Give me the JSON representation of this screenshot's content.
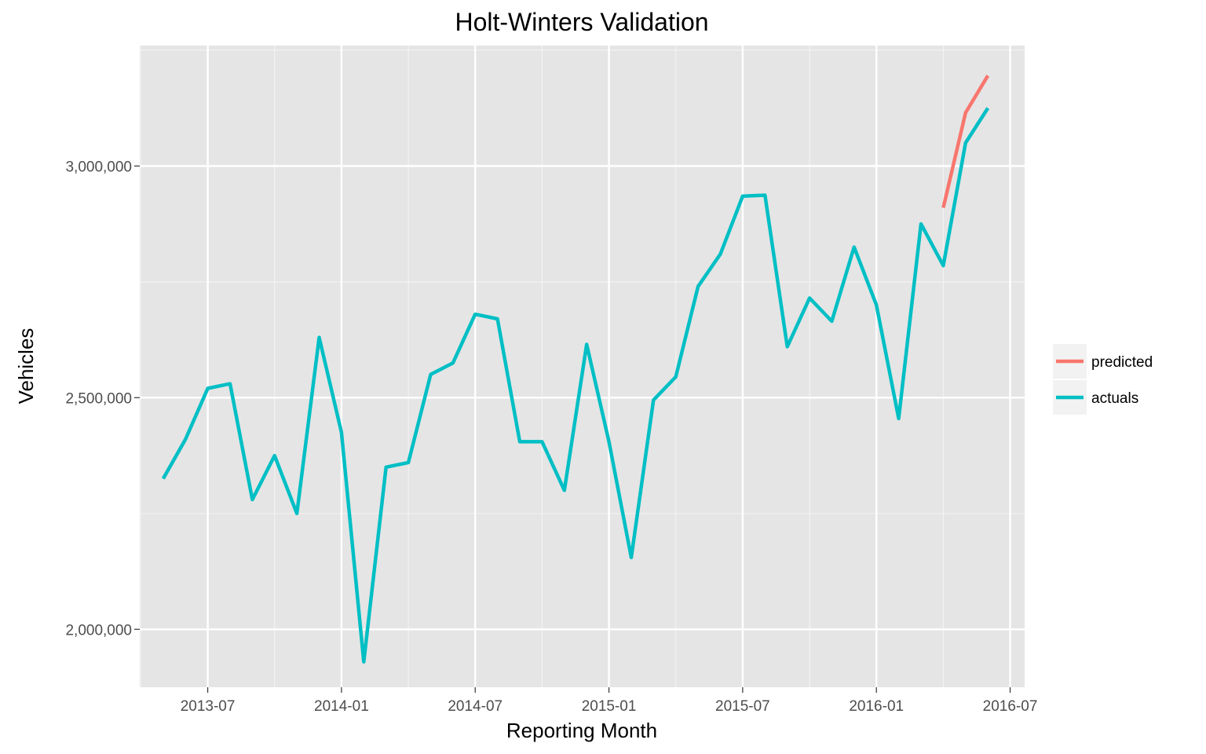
{
  "chart_data": {
    "type": "line",
    "title": "Holt-Winters Validation",
    "xlabel": "Reporting Month",
    "ylabel": "Vehicles",
    "x_ticks": [
      "2013-07",
      "2014-01",
      "2014-07",
      "2015-01",
      "2015-07",
      "2016-01",
      "2016-07"
    ],
    "y_ticks": [
      "2,000,000",
      "2,500,000",
      "3,000,000"
    ],
    "ylim": [
      1875000,
      3260000
    ],
    "grid": true,
    "legend_position": "right",
    "series": [
      {
        "name": "predicted",
        "color": "#F8766D",
        "points": [
          {
            "x": "2016-04",
            "y": 2910000
          },
          {
            "x": "2016-05",
            "y": 3115000
          },
          {
            "x": "2016-06",
            "y": 3195000
          }
        ]
      },
      {
        "name": "actuals",
        "color": "#00BFC4",
        "points": [
          {
            "x": "2013-05",
            "y": 2325000
          },
          {
            "x": "2013-06",
            "y": 2410000
          },
          {
            "x": "2013-07",
            "y": 2520000
          },
          {
            "x": "2013-08",
            "y": 2530000
          },
          {
            "x": "2013-09",
            "y": 2280000
          },
          {
            "x": "2013-10",
            "y": 2375000
          },
          {
            "x": "2013-11",
            "y": 2250000
          },
          {
            "x": "2013-12",
            "y": 2630000
          },
          {
            "x": "2014-01",
            "y": 2425000
          },
          {
            "x": "2014-02",
            "y": 1930000
          },
          {
            "x": "2014-03",
            "y": 2350000
          },
          {
            "x": "2014-04",
            "y": 2360000
          },
          {
            "x": "2014-05",
            "y": 2550000
          },
          {
            "x": "2014-06",
            "y": 2575000
          },
          {
            "x": "2014-07",
            "y": 2680000
          },
          {
            "x": "2014-08",
            "y": 2670000
          },
          {
            "x": "2014-09",
            "y": 2405000
          },
          {
            "x": "2014-10",
            "y": 2405000
          },
          {
            "x": "2014-11",
            "y": 2300000
          },
          {
            "x": "2014-12",
            "y": 2615000
          },
          {
            "x": "2015-01",
            "y": 2405000
          },
          {
            "x": "2015-02",
            "y": 2155000
          },
          {
            "x": "2015-03",
            "y": 2495000
          },
          {
            "x": "2015-04",
            "y": 2545000
          },
          {
            "x": "2015-05",
            "y": 2740000
          },
          {
            "x": "2015-06",
            "y": 2810000
          },
          {
            "x": "2015-07",
            "y": 2935000
          },
          {
            "x": "2015-08",
            "y": 2937000
          },
          {
            "x": "2015-09",
            "y": 2610000
          },
          {
            "x": "2015-10",
            "y": 2715000
          },
          {
            "x": "2015-11",
            "y": 2665000
          },
          {
            "x": "2015-12",
            "y": 2825000
          },
          {
            "x": "2016-01",
            "y": 2700000
          },
          {
            "x": "2016-02",
            "y": 2455000
          },
          {
            "x": "2016-03",
            "y": 2875000
          },
          {
            "x": "2016-04",
            "y": 2785000
          },
          {
            "x": "2016-05",
            "y": 3050000
          },
          {
            "x": "2016-06",
            "y": 3125000
          }
        ]
      }
    ]
  }
}
